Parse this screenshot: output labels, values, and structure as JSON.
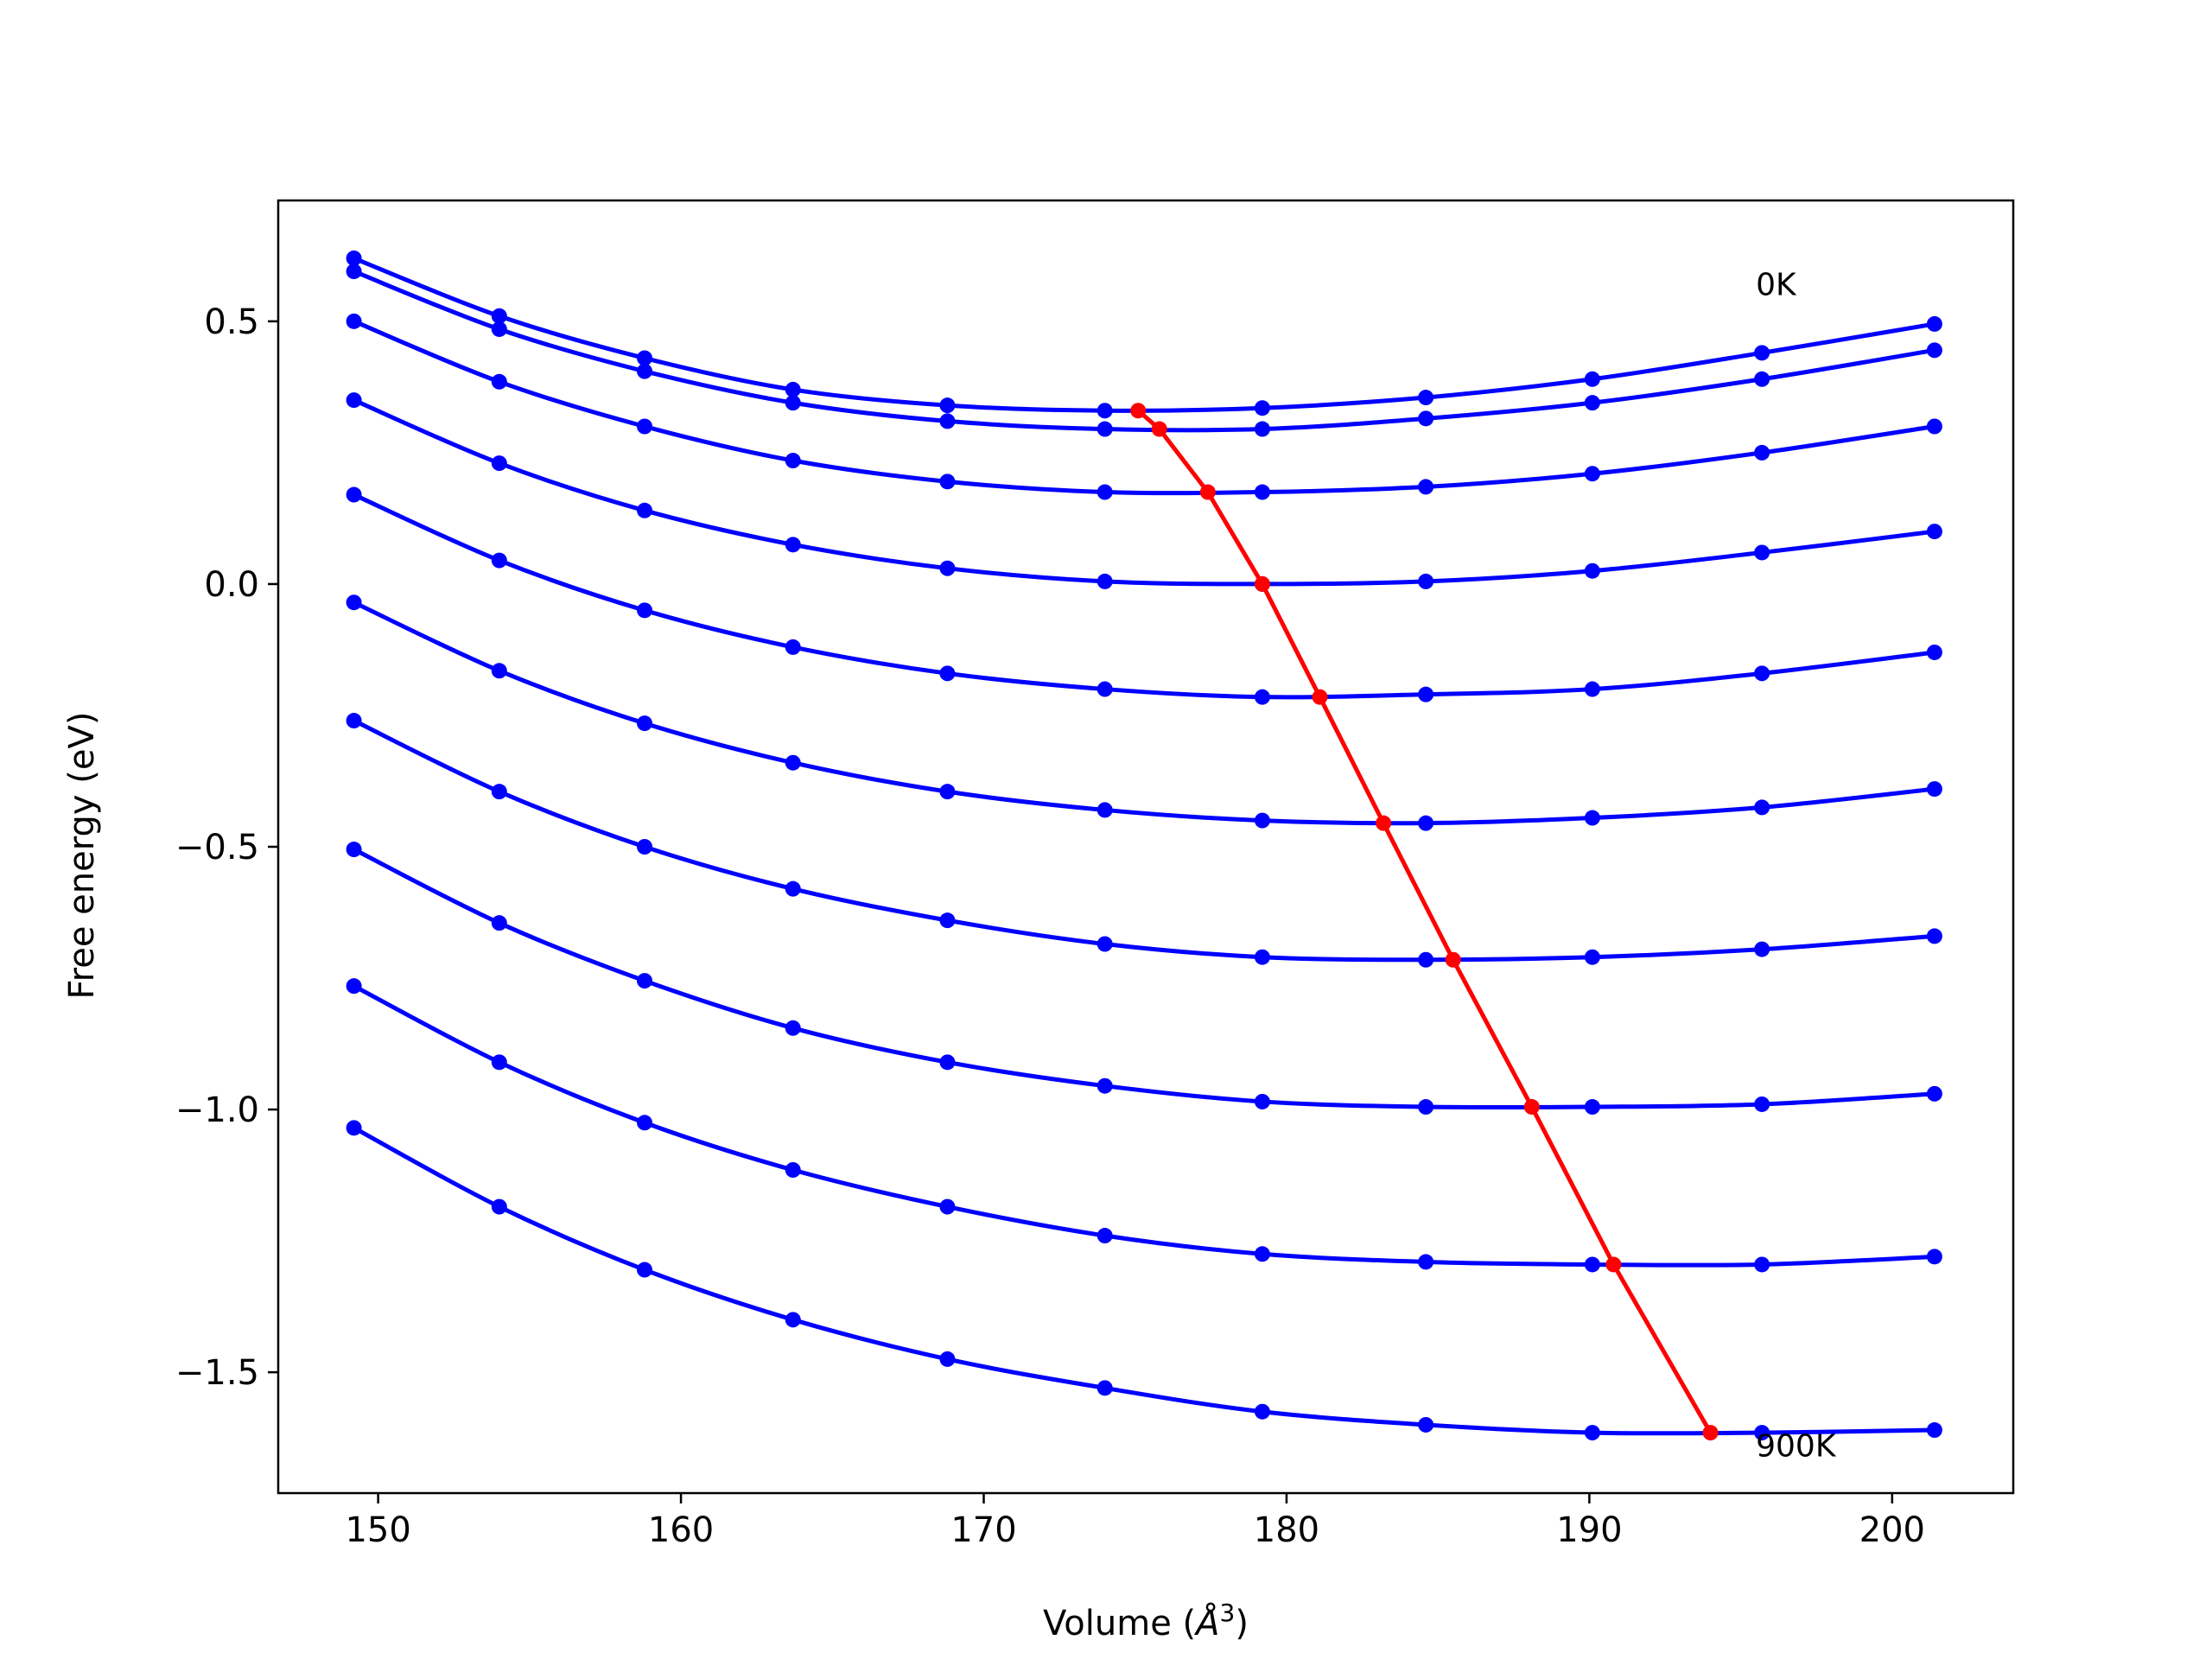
{
  "chart_data": {
    "type": "line",
    "title": "",
    "xlabel": "Volume (Å³)",
    "xlabel_parts": {
      "before": "Volume (",
      "symbol": "Å",
      "exponent": "3",
      "after": ")"
    },
    "ylabel": "Free energy (eV)",
    "xlim": [
      146.7,
      204.0
    ],
    "ylim": [
      -1.73,
      0.73
    ],
    "xticks": [
      150,
      160,
      170,
      180,
      190,
      200
    ],
    "xtick_labels": [
      "150",
      "160",
      "170",
      "180",
      "190",
      "200"
    ],
    "yticks": [
      0.5,
      0.0,
      -0.5,
      -1.0,
      -1.5
    ],
    "ytick_labels": [
      "0.5",
      "0.0",
      "−0.5",
      "−1.0",
      "−1.5"
    ],
    "grid": false,
    "legend": "none",
    "annotations": [
      {
        "text": "0K",
        "x": 195.5,
        "y": 0.55
      },
      {
        "text": "900K",
        "x": 195.5,
        "y": -1.66
      }
    ],
    "x": [
      149.2,
      154.0,
      158.8,
      163.7,
      168.8,
      174.0,
      179.2,
      184.6,
      190.1,
      195.7,
      201.4
    ],
    "series": [
      {
        "color": "#0000ff",
        "values": [
          0.62,
          0.51,
          0.43,
          0.37,
          0.34,
          0.33,
          0.335,
          0.355,
          0.39,
          0.44,
          0.495
        ]
      },
      {
        "color": "#0000ff",
        "values": [
          0.595,
          0.485,
          0.405,
          0.345,
          0.31,
          0.295,
          0.295,
          0.315,
          0.345,
          0.39,
          0.445
        ]
      },
      {
        "color": "#0000ff",
        "values": [
          0.5,
          0.385,
          0.3,
          0.235,
          0.195,
          0.175,
          0.175,
          0.185,
          0.21,
          0.25,
          0.3
        ]
      },
      {
        "color": "#0000ff",
        "values": [
          0.35,
          0.23,
          0.14,
          0.075,
          0.03,
          0.005,
          0.0,
          0.005,
          0.025,
          0.06,
          0.1
        ]
      },
      {
        "color": "#0000ff",
        "values": [
          0.17,
          0.045,
          -0.05,
          -0.12,
          -0.17,
          -0.2,
          -0.215,
          -0.21,
          -0.2,
          -0.17,
          -0.13
        ]
      },
      {
        "color": "#0000ff",
        "values": [
          -0.035,
          -0.165,
          -0.265,
          -0.34,
          -0.395,
          -0.43,
          -0.45,
          -0.455,
          -0.445,
          -0.425,
          -0.39
        ]
      },
      {
        "color": "#0000ff",
        "values": [
          -0.26,
          -0.395,
          -0.5,
          -0.58,
          -0.64,
          -0.685,
          -0.71,
          -0.715,
          -0.71,
          -0.695,
          -0.67
        ]
      },
      {
        "color": "#0000ff",
        "values": [
          -0.505,
          -0.645,
          -0.755,
          -0.845,
          -0.91,
          -0.955,
          -0.985,
          -0.995,
          -0.995,
          -0.99,
          -0.97
        ]
      },
      {
        "color": "#0000ff",
        "values": [
          -0.765,
          -0.91,
          -1.025,
          -1.115,
          -1.185,
          -1.24,
          -1.275,
          -1.29,
          -1.295,
          -1.295,
          -1.28
        ]
      },
      {
        "color": "#0000ff",
        "values": [
          -1.035,
          -1.185,
          -1.305,
          -1.4,
          -1.475,
          -1.53,
          -1.575,
          -1.6,
          -1.615,
          -1.615,
          -1.61
        ]
      }
    ],
    "minimum_curve": {
      "color": "#ff0000",
      "x": [
        175.1,
        175.8,
        177.4,
        179.2,
        181.1,
        183.2,
        185.5,
        188.1,
        190.8,
        194.0
      ],
      "y": [
        0.33,
        0.295,
        0.175,
        0.0,
        -0.215,
        -0.455,
        -0.715,
        -0.995,
        -1.295,
        -1.615
      ]
    }
  }
}
